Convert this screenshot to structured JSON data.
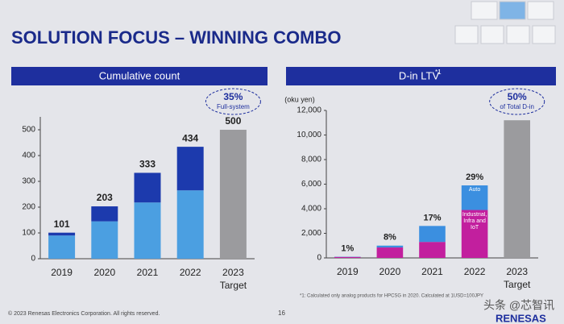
{
  "title": "SOLUTION FOCUS – WINNING COMBO",
  "footer": {
    "copyright": "© 2023 Renesas Electronics Corporation. All rights reserved.",
    "page": "16",
    "logo": "RENESAS",
    "watermark": "头条 @芯智讯"
  },
  "chart_data": [
    {
      "type": "bar",
      "stacked": true,
      "header": "Cumulative count",
      "categories": [
        "2019",
        "2020",
        "2021",
        "2022",
        "2023"
      ],
      "target_label": "Target",
      "series": [
        {
          "color": "#4b9fe1",
          "values": [
            90,
            145,
            218,
            265,
            null
          ]
        },
        {
          "color": "#1c3aad",
          "values": [
            11,
            58,
            115,
            169,
            null
          ]
        },
        {
          "color": "#9b9b9e",
          "values": [
            null,
            null,
            null,
            null,
            500
          ]
        }
      ],
      "totals": [
        101,
        203,
        333,
        434,
        500
      ],
      "callout": [
        "35%",
        "Full-system"
      ],
      "ylim": [
        0,
        550
      ],
      "yticks": [
        0,
        100,
        200,
        300,
        400,
        500
      ]
    },
    {
      "type": "bar",
      "stacked": true,
      "header": "D-in LTV",
      "header_note": "*1",
      "y_label": "(oku yen)",
      "categories": [
        "2019",
        "2020",
        "2021",
        "2022",
        "2023"
      ],
      "target_label": "Target",
      "series": [
        {
          "name": "Industrial, Infra and IoT",
          "color": "#c21f9e",
          "values": [
            80,
            850,
            1300,
            3900,
            null
          ]
        },
        {
          "name": "Auto",
          "color": "#3b8fe0",
          "values": [
            20,
            150,
            1300,
            2000,
            null
          ]
        },
        {
          "color": "#9b9b9e",
          "values": [
            null,
            null,
            null,
            null,
            11200
          ]
        }
      ],
      "share_labels": [
        "1%",
        "8%",
        "17%",
        "29%"
      ],
      "callout": [
        "50%",
        "of Total D-in"
      ],
      "footnote": "*1: Calculated only analog products for HPCSG in 2020. Calculated at 1USD=100JPY",
      "ylim": [
        0,
        12000
      ],
      "yticks": [
        0,
        {
          "value": 2000,
          "label": "2,000"
        },
        {
          "value": 4000,
          "label": "4,000"
        },
        {
          "value": 6000,
          "label": "6,000"
        },
        {
          "value": 8000,
          "label": "8,000"
        },
        {
          "value": 10000,
          "label": "10,000"
        },
        {
          "value": 12000,
          "label": "12,000"
        }
      ]
    }
  ]
}
